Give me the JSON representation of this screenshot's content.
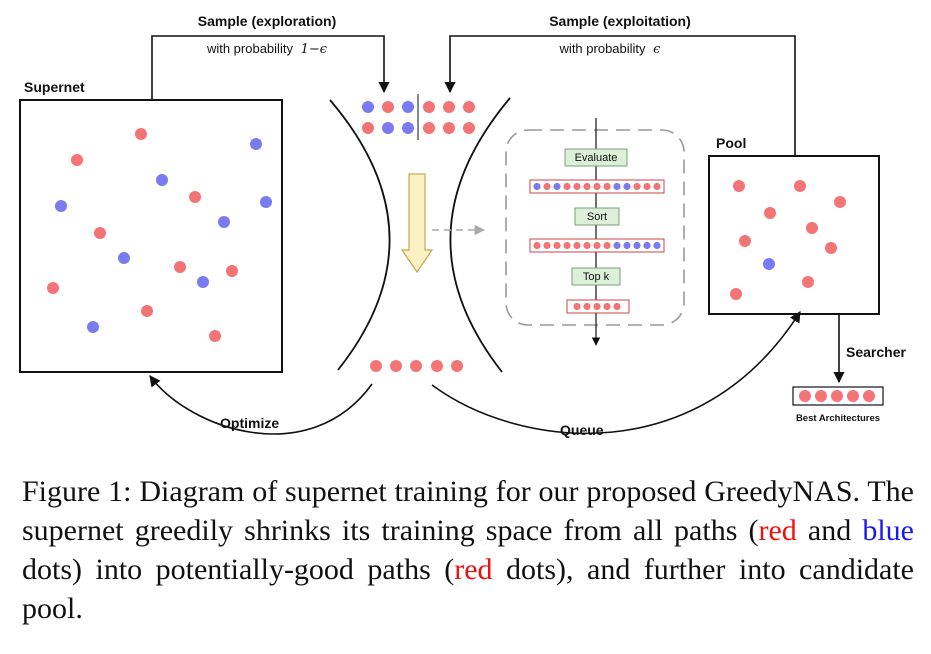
{
  "labels": {
    "sample_exploration": "Sample (exploration)",
    "prob_exploration_text": "with probability",
    "prob_exploration_math": "1−ϵ",
    "sample_exploitation": "Sample (exploitation)",
    "prob_exploitation_text": "with probability",
    "prob_exploitation_math": "ϵ",
    "supernet": "Supernet",
    "pool": "Pool",
    "searcher": "Searcher",
    "best_architectures": "Best Architectures",
    "optimize": "Optimize",
    "queue": "Queue"
  },
  "steps": {
    "evaluate": "Evaluate",
    "sort": "Sort",
    "topk": "Top k"
  },
  "caption": {
    "prefix": "Figure 1: Diagram of supernet training for our proposed GreedyNAS. The supernet greedily shrinks its training space from all paths (",
    "red_word_1": "red",
    "middle_1": " and ",
    "blue_word": "blue",
    "middle_2": " dots) into potentially-good paths (",
    "red_word_2": "red",
    "suffix": " dots), and further into candidate pool."
  },
  "colors": {
    "red_dot": "#f27474",
    "blue_dot": "#7b7bf0",
    "step_box": "#dcefd8",
    "arrow_fill": "#fbf1c4"
  }
}
